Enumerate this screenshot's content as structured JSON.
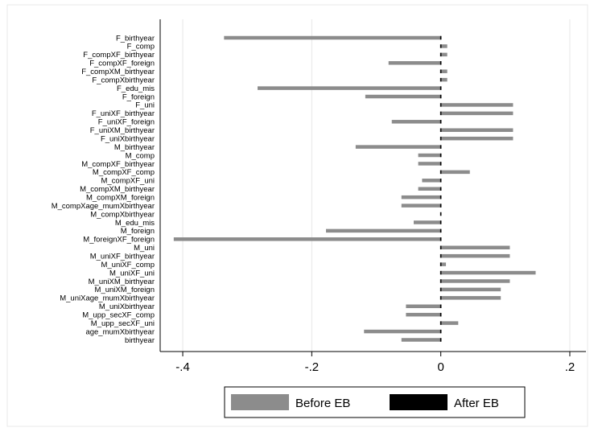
{
  "chart_data": {
    "type": "bar",
    "orientation": "horizontal",
    "categories": [
      "F_birthyear",
      "F_comp",
      "F_compXF_birthyear",
      "F_compXF_foreign",
      "F_compXM_birthyear",
      "F_compXbirthyear",
      "F_edu_mis",
      "F_foreign",
      "F_uni",
      "F_uniXF_birthyear",
      "F_uniXF_foreign",
      "F_uniXM_birthyear",
      "F_uniXbirthyear",
      "M_birthyear",
      "M_comp",
      "M_compXF_birthyear",
      "M_compXF_comp",
      "M_compXF_uni",
      "M_compXM_birthyear",
      "M_compXM_foreign",
      "M_compXage_mumXbirthyear",
      "M_compXbirthyear",
      "M_edu_mis",
      "M_foreign",
      "M_foreignXF_foreign",
      "M_uni",
      "M_uniXF_birthyear",
      "M_uniXF_comp",
      "M_uniXF_uni",
      "M_uniXM_birthyear",
      "M_uniXM_foreign",
      "M_uniXage_mumXbirthyear",
      "M_uniXbirthyear",
      "M_upp_secXF_comp",
      "M_upp_secXF_uni",
      "age_mumXbirthyear",
      "birthyear"
    ],
    "series": [
      {
        "name": "Before EB",
        "color": "#8c8c8c",
        "values": [
          -0.336,
          0.01,
          0.01,
          -0.081,
          0.01,
          0.01,
          -0.284,
          -0.117,
          0.112,
          0.112,
          -0.076,
          0.112,
          0.112,
          -0.132,
          -0.035,
          -0.035,
          0.045,
          -0.029,
          -0.035,
          -0.061,
          -0.061,
          0.0,
          -0.042,
          -0.178,
          -0.414,
          0.107,
          0.107,
          0.008,
          0.147,
          0.107,
          0.093,
          0.093,
          -0.054,
          -0.054,
          0.027,
          -0.119,
          -0.061
        ]
      },
      {
        "name": "After EB",
        "color": "#000000",
        "values": [
          0,
          0,
          0,
          0,
          0,
          0,
          0,
          0,
          0,
          0,
          0,
          0,
          0,
          0,
          0,
          0,
          0,
          0,
          0,
          0,
          0,
          0,
          0,
          0,
          0,
          0,
          0,
          0,
          0,
          0,
          0,
          0,
          0,
          0,
          0,
          0,
          0
        ]
      }
    ],
    "xlim": [
      -0.435,
      0.225
    ],
    "xticks": [
      -0.4,
      -0.2,
      0,
      0.2
    ],
    "xtick_labels": [
      "-.4",
      "-.2",
      "0",
      ".2"
    ],
    "title": "",
    "xlabel": "",
    "ylabel": "",
    "grid": "vertical",
    "legend": {
      "position": "bottom",
      "entries": [
        "Before EB",
        "After EB"
      ]
    }
  }
}
